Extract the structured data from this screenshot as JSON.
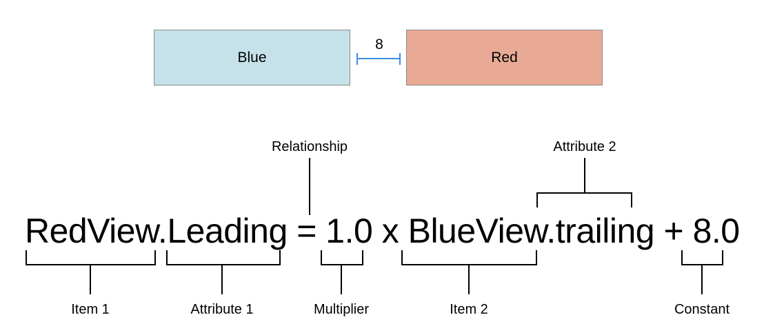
{
  "views": {
    "blue": {
      "label": "Blue",
      "fill": "#c5e1e9"
    },
    "red": {
      "label": "Red",
      "fill": "#e8aa95"
    },
    "spacing": "8",
    "spacer_color": "#3a8de0"
  },
  "equation": {
    "item1": "RedView.",
    "attribute1": "Leading",
    "relation": " = ",
    "multiplier": "1.0",
    "times": " x ",
    "item2": "BlueView.",
    "attribute2": "trailing",
    "plus": " + ",
    "constant": "8.0"
  },
  "labels": {
    "relationship": "Relationship",
    "attribute2": "Attribute 2",
    "item1": "Item 1",
    "attribute1": "Attribute 1",
    "multiplier": "Multiplier",
    "item2": "Item 2",
    "constant": "Constant"
  }
}
